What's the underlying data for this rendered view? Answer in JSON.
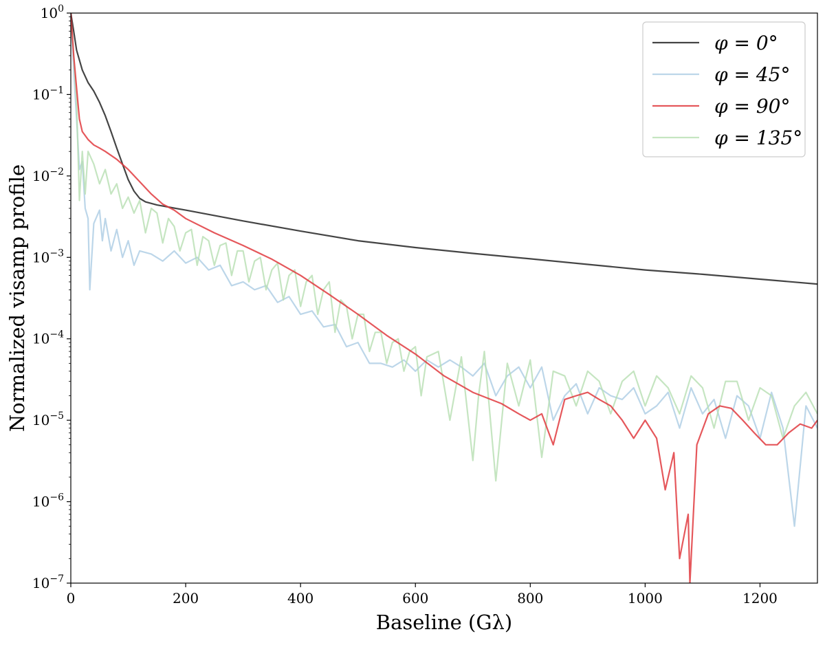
{
  "chart_data": {
    "type": "line",
    "xlabel": "Baseline (Gλ)",
    "ylabel": "Normalized visamp profile",
    "xlim": [
      0,
      1300
    ],
    "ylim": [
      1e-07,
      1
    ],
    "yscale": "log",
    "x_ticks": [
      0,
      200,
      400,
      600,
      800,
      1000,
      1200
    ],
    "x_tick_labels": [
      "0",
      "200",
      "400",
      "600",
      "800",
      "1000",
      "1200"
    ],
    "y_ticks": [
      1e-07,
      1e-06,
      1e-05,
      0.0001,
      0.001,
      0.01,
      0.1,
      1
    ],
    "y_tick_labels": [
      {
        "base": "10",
        "exp": "−7"
      },
      {
        "base": "10",
        "exp": "−6"
      },
      {
        "base": "10",
        "exp": "−5"
      },
      {
        "base": "10",
        "exp": "−4"
      },
      {
        "base": "10",
        "exp": "−3"
      },
      {
        "base": "10",
        "exp": "−2"
      },
      {
        "base": "10",
        "exp": "−1"
      },
      {
        "base": "10",
        "exp": "0"
      }
    ],
    "grid": false,
    "legend_position": "top-right",
    "series": [
      {
        "name": "φ = 0°",
        "color": "#444444",
        "opacity": 1,
        "points": [
          [
            0,
            1.0
          ],
          [
            5,
            0.6
          ],
          [
            10,
            0.35
          ],
          [
            20,
            0.2
          ],
          [
            30,
            0.14
          ],
          [
            40,
            0.11
          ],
          [
            50,
            0.08
          ],
          [
            60,
            0.055
          ],
          [
            70,
            0.035
          ],
          [
            80,
            0.022
          ],
          [
            90,
            0.014
          ],
          [
            100,
            0.009
          ],
          [
            110,
            0.0065
          ],
          [
            120,
            0.0053
          ],
          [
            130,
            0.0048
          ],
          [
            150,
            0.0044
          ],
          [
            200,
            0.0038
          ],
          [
            300,
            0.0028
          ],
          [
            400,
            0.0021
          ],
          [
            500,
            0.0016
          ],
          [
            600,
            0.00132
          ],
          [
            700,
            0.00112
          ],
          [
            800,
            0.00096
          ],
          [
            900,
            0.00082
          ],
          [
            1000,
            0.0007
          ],
          [
            1100,
            0.00062
          ],
          [
            1200,
            0.00054
          ],
          [
            1300,
            0.00047
          ]
        ]
      },
      {
        "name": "φ = 45°",
        "color": "#a6c8e2",
        "opacity": 0.75,
        "points": [
          [
            0,
            1.0
          ],
          [
            5,
            0.2
          ],
          [
            10,
            0.05
          ],
          [
            15,
            0.012
          ],
          [
            20,
            0.015
          ],
          [
            25,
            0.004
          ],
          [
            30,
            0.003
          ],
          [
            33,
            0.0004
          ],
          [
            40,
            0.0026
          ],
          [
            50,
            0.0038
          ],
          [
            55,
            0.0016
          ],
          [
            60,
            0.003
          ],
          [
            70,
            0.0012
          ],
          [
            80,
            0.0022
          ],
          [
            90,
            0.001
          ],
          [
            100,
            0.0016
          ],
          [
            110,
            0.0008
          ],
          [
            120,
            0.0012
          ],
          [
            140,
            0.0011
          ],
          [
            160,
            0.0009
          ],
          [
            180,
            0.0012
          ],
          [
            200,
            0.00085
          ],
          [
            220,
            0.001
          ],
          [
            240,
            0.0007
          ],
          [
            260,
            0.0008
          ],
          [
            280,
            0.00045
          ],
          [
            300,
            0.0005
          ],
          [
            320,
            0.0004
          ],
          [
            340,
            0.00045
          ],
          [
            360,
            0.00028
          ],
          [
            380,
            0.00033
          ],
          [
            400,
            0.0002
          ],
          [
            420,
            0.00022
          ],
          [
            440,
            0.00014
          ],
          [
            460,
            0.00015
          ],
          [
            480,
            8e-05
          ],
          [
            500,
            9e-05
          ],
          [
            520,
            5e-05
          ],
          [
            540,
            5e-05
          ],
          [
            560,
            4.5e-05
          ],
          [
            580,
            5.5e-05
          ],
          [
            600,
            4e-05
          ],
          [
            620,
            5.5e-05
          ],
          [
            640,
            4.5e-05
          ],
          [
            660,
            5.5e-05
          ],
          [
            680,
            4.5e-05
          ],
          [
            700,
            3.5e-05
          ],
          [
            720,
            5e-05
          ],
          [
            740,
            2e-05
          ],
          [
            760,
            3.5e-05
          ],
          [
            780,
            4.5e-05
          ],
          [
            800,
            2.5e-05
          ],
          [
            820,
            4.5e-05
          ],
          [
            840,
            1e-05
          ],
          [
            860,
            2e-05
          ],
          [
            880,
            2.8e-05
          ],
          [
            900,
            1.2e-05
          ],
          [
            920,
            2.5e-05
          ],
          [
            940,
            2e-05
          ],
          [
            960,
            1.8e-05
          ],
          [
            980,
            2.5e-05
          ],
          [
            1000,
            1.2e-05
          ],
          [
            1020,
            1.5e-05
          ],
          [
            1040,
            2.2e-05
          ],
          [
            1060,
            8e-06
          ],
          [
            1080,
            2.5e-05
          ],
          [
            1100,
            1.2e-05
          ],
          [
            1120,
            1.8e-05
          ],
          [
            1140,
            6e-06
          ],
          [
            1160,
            2e-05
          ],
          [
            1180,
            1.5e-05
          ],
          [
            1200,
            6e-06
          ],
          [
            1220,
            2.2e-05
          ],
          [
            1240,
            8e-06
          ],
          [
            1260,
            5e-07
          ],
          [
            1280,
            1.5e-05
          ],
          [
            1300,
            8e-06
          ]
        ]
      },
      {
        "name": "φ = 90°",
        "color": "#e0393e",
        "opacity": 0.85,
        "points": [
          [
            0,
            1.0
          ],
          [
            5,
            0.3
          ],
          [
            10,
            0.12
          ],
          [
            15,
            0.05
          ],
          [
            20,
            0.035
          ],
          [
            30,
            0.028
          ],
          [
            40,
            0.024
          ],
          [
            50,
            0.022
          ],
          [
            60,
            0.02
          ],
          [
            80,
            0.016
          ],
          [
            100,
            0.012
          ],
          [
            120,
            0.0085
          ],
          [
            140,
            0.006
          ],
          [
            160,
            0.0045
          ],
          [
            180,
            0.0038
          ],
          [
            200,
            0.003
          ],
          [
            250,
            0.002
          ],
          [
            300,
            0.0014
          ],
          [
            350,
            0.00095
          ],
          [
            400,
            0.0006
          ],
          [
            450,
            0.00035
          ],
          [
            500,
            0.0002
          ],
          [
            550,
            0.00011
          ],
          [
            600,
            6.5e-05
          ],
          [
            650,
            3.5e-05
          ],
          [
            700,
            2.2e-05
          ],
          [
            750,
            1.6e-05
          ],
          [
            780,
            1.2e-05
          ],
          [
            800,
            1e-05
          ],
          [
            820,
            1.2e-05
          ],
          [
            840,
            5e-06
          ],
          [
            860,
            1.8e-05
          ],
          [
            880,
            2e-05
          ],
          [
            900,
            2.2e-05
          ],
          [
            920,
            1.8e-05
          ],
          [
            940,
            1.5e-05
          ],
          [
            960,
            1e-05
          ],
          [
            980,
            6e-06
          ],
          [
            1000,
            1e-05
          ],
          [
            1020,
            6e-06
          ],
          [
            1035,
            1.4e-06
          ],
          [
            1050,
            4e-06
          ],
          [
            1060,
            2e-07
          ],
          [
            1075,
            7e-07
          ],
          [
            1078,
            1e-07
          ],
          [
            1090,
            5e-06
          ],
          [
            1110,
            1.2e-05
          ],
          [
            1130,
            1.5e-05
          ],
          [
            1150,
            1.4e-05
          ],
          [
            1170,
            1e-05
          ],
          [
            1190,
            7e-06
          ],
          [
            1210,
            5e-06
          ],
          [
            1230,
            5e-06
          ],
          [
            1250,
            7e-06
          ],
          [
            1270,
            9e-06
          ],
          [
            1290,
            8e-06
          ],
          [
            1300,
            1e-05
          ]
        ]
      },
      {
        "name": "φ = 135°",
        "color": "#b7dfb2",
        "opacity": 0.8,
        "points": [
          [
            0,
            1.0
          ],
          [
            5,
            0.3
          ],
          [
            10,
            0.08
          ],
          [
            15,
            0.005
          ],
          [
            20,
            0.02
          ],
          [
            25,
            0.006
          ],
          [
            30,
            0.02
          ],
          [
            40,
            0.014
          ],
          [
            50,
            0.008
          ],
          [
            60,
            0.012
          ],
          [
            70,
            0.006
          ],
          [
            80,
            0.008
          ],
          [
            90,
            0.004
          ],
          [
            100,
            0.0055
          ],
          [
            110,
            0.0035
          ],
          [
            120,
            0.005
          ],
          [
            130,
            0.002
          ],
          [
            140,
            0.004
          ],
          [
            150,
            0.0035
          ],
          [
            160,
            0.0015
          ],
          [
            170,
            0.003
          ],
          [
            180,
            0.0024
          ],
          [
            190,
            0.0012
          ],
          [
            200,
            0.002
          ],
          [
            210,
            0.0022
          ],
          [
            220,
            0.0008
          ],
          [
            230,
            0.0018
          ],
          [
            240,
            0.0016
          ],
          [
            250,
            0.0008
          ],
          [
            260,
            0.0014
          ],
          [
            270,
            0.0015
          ],
          [
            280,
            0.0006
          ],
          [
            290,
            0.0012
          ],
          [
            300,
            0.0012
          ],
          [
            310,
            0.0005
          ],
          [
            320,
            0.0009
          ],
          [
            330,
            0.001
          ],
          [
            340,
            0.0004
          ],
          [
            350,
            0.0007
          ],
          [
            360,
            0.00085
          ],
          [
            370,
            0.0003
          ],
          [
            380,
            0.0006
          ],
          [
            390,
            0.0007
          ],
          [
            400,
            0.00025
          ],
          [
            410,
            0.0005
          ],
          [
            420,
            0.0006
          ],
          [
            430,
            0.0002
          ],
          [
            440,
            0.0004
          ],
          [
            450,
            0.0005
          ],
          [
            460,
            0.00012
          ],
          [
            470,
            0.0003
          ],
          [
            480,
            0.00025
          ],
          [
            490,
            0.0001
          ],
          [
            500,
            0.0002
          ],
          [
            510,
            0.0002
          ],
          [
            520,
            7e-05
          ],
          [
            530,
            0.00012
          ],
          [
            540,
            0.00012
          ],
          [
            550,
            5e-05
          ],
          [
            560,
            9e-05
          ],
          [
            570,
            0.0001
          ],
          [
            580,
            4e-05
          ],
          [
            590,
            7e-05
          ],
          [
            600,
            8e-05
          ],
          [
            610,
            2e-05
          ],
          [
            620,
            6e-05
          ],
          [
            640,
            7e-05
          ],
          [
            660,
            1e-05
          ],
          [
            680,
            6e-05
          ],
          [
            700,
            3.2e-06
          ],
          [
            710,
            2e-05
          ],
          [
            720,
            7e-05
          ],
          [
            740,
            1.8e-06
          ],
          [
            760,
            5e-05
          ],
          [
            780,
            1.5e-05
          ],
          [
            800,
            5.5e-05
          ],
          [
            820,
            3.5e-06
          ],
          [
            840,
            4e-05
          ],
          [
            860,
            3.5e-05
          ],
          [
            880,
            1.5e-05
          ],
          [
            900,
            4e-05
          ],
          [
            920,
            3e-05
          ],
          [
            940,
            1.2e-05
          ],
          [
            960,
            3e-05
          ],
          [
            980,
            4e-05
          ],
          [
            1000,
            1.5e-05
          ],
          [
            1020,
            3.5e-05
          ],
          [
            1040,
            2.5e-05
          ],
          [
            1060,
            1.2e-05
          ],
          [
            1080,
            3.5e-05
          ],
          [
            1100,
            2.5e-05
          ],
          [
            1120,
            8e-06
          ],
          [
            1140,
            3e-05
          ],
          [
            1160,
            3e-05
          ],
          [
            1180,
            1e-05
          ],
          [
            1200,
            2.5e-05
          ],
          [
            1220,
            2e-05
          ],
          [
            1240,
            6e-06
          ],
          [
            1260,
            1.5e-05
          ],
          [
            1280,
            2.2e-05
          ],
          [
            1300,
            1.2e-05
          ]
        ]
      }
    ]
  }
}
